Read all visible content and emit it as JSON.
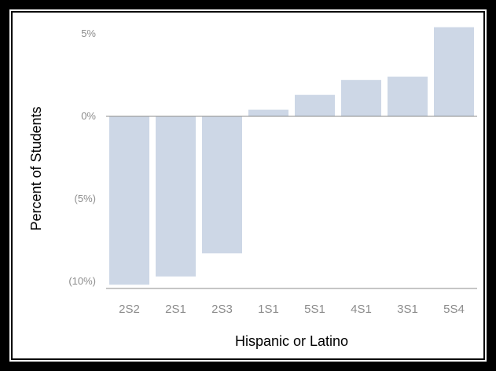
{
  "chart_data": {
    "type": "bar",
    "categories": [
      "2S2",
      "2S1",
      "2S3",
      "1S1",
      "5S1",
      "4S1",
      "3S1",
      "5S4"
    ],
    "values": [
      -10.2,
      -9.7,
      -8.3,
      0.4,
      1.3,
      2.2,
      2.4,
      5.4
    ],
    "xlabel": "Hispanic or Latino",
    "ylabel": "Percent of Students",
    "ylim": [
      -10,
      5
    ],
    "yticks": [
      5,
      0,
      -5,
      -10
    ],
    "ytick_labels": [
      "5%",
      "0%",
      "(5%)",
      "(10%)"
    ],
    "grid": false,
    "bar_color": "#cdd7e6",
    "axis_color": "#8c8c8c"
  }
}
